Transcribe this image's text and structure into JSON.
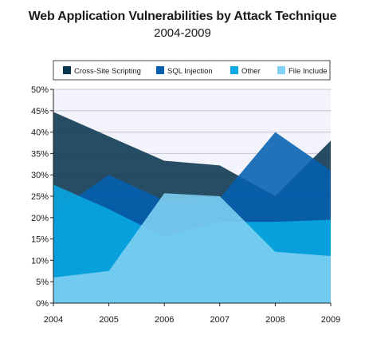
{
  "chart_data": {
    "type": "area",
    "title": "Web Application Vulnerabilities by Attack Technique",
    "subtitle": "2004-2009",
    "x": [
      "2004",
      "2005",
      "2006",
      "2007",
      "2008",
      "2009"
    ],
    "ylim": [
      0,
      50
    ],
    "yticks": [
      "0%",
      "5%",
      "10%",
      "15%",
      "20%",
      "25%",
      "30%",
      "35%",
      "40%",
      "45%",
      "50%"
    ],
    "grid": true,
    "legend_position": "top",
    "series": [
      {
        "name": "Cross-Site Scripting",
        "color": "#0a3550",
        "values": [
          44.7,
          39.0,
          33.3,
          32.2,
          25.0,
          38.0
        ]
      },
      {
        "name": "SQL Injection",
        "color": "#0560b0",
        "values": [
          21.0,
          30.0,
          24.0,
          24.5,
          40.0,
          31.0
        ]
      },
      {
        "name": "Other",
        "color": "#08a9e5",
        "values": [
          27.7,
          22.0,
          15.5,
          19.0,
          19.0,
          19.5
        ]
      },
      {
        "name": "File Include",
        "color": "#80d1f4",
        "values": [
          6.0,
          7.5,
          25.7,
          25.0,
          12.0,
          11.0
        ]
      }
    ]
  }
}
